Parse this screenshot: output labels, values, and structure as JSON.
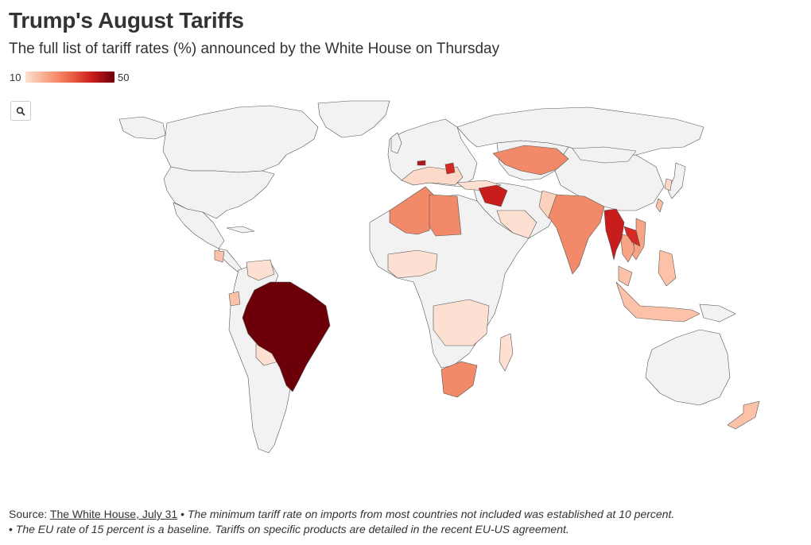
{
  "header": {
    "title": "Trump's August Tariffs",
    "subtitle": "The full list of tariff rates (%) announced by the White House on Thursday"
  },
  "legend": {
    "min": "10",
    "max": "50",
    "colors": [
      "#fde0d2",
      "#f7a584",
      "#ef6548",
      "#c81d1d",
      "#6b0009"
    ],
    "no_data_color": "#f2f2f2"
  },
  "controls": {
    "zoom_icon": "search-icon"
  },
  "map": {
    "type": "choropleth",
    "projection": "world",
    "value_label": "tariff rate (%)",
    "shaded_countries": [
      {
        "name": "Brazil",
        "level": "50"
      },
      {
        "name": "Myanmar",
        "level": "40"
      },
      {
        "name": "Laos",
        "level": "40"
      },
      {
        "name": "Syria",
        "level": "41"
      },
      {
        "name": "Iraq",
        "level": "35"
      },
      {
        "name": "Serbia",
        "level": "35"
      },
      {
        "name": "Switzerland",
        "level": "39"
      },
      {
        "name": "Algeria",
        "level": "30"
      },
      {
        "name": "Libya",
        "level": "30"
      },
      {
        "name": "South Africa",
        "level": "30"
      },
      {
        "name": "Kazakhstan",
        "level": "25"
      },
      {
        "name": "India",
        "level": "25"
      },
      {
        "name": "Thailand",
        "level": "19"
      },
      {
        "name": "Cambodia",
        "level": "19"
      },
      {
        "name": "Indonesia",
        "level": "19"
      },
      {
        "name": "Philippines",
        "level": "19"
      }
    ]
  },
  "footer": {
    "source_label": "Source:",
    "source_link": "The White House, July 31",
    "sep": "•",
    "note1": "The minimum tariff rate on imports from most countries not included was established at 10 percent.",
    "bullet": "•",
    "note2": "The EU rate of 15 percent is a baseline. Tariffs on specific products are detailed in the recent EU-US agreement."
  }
}
